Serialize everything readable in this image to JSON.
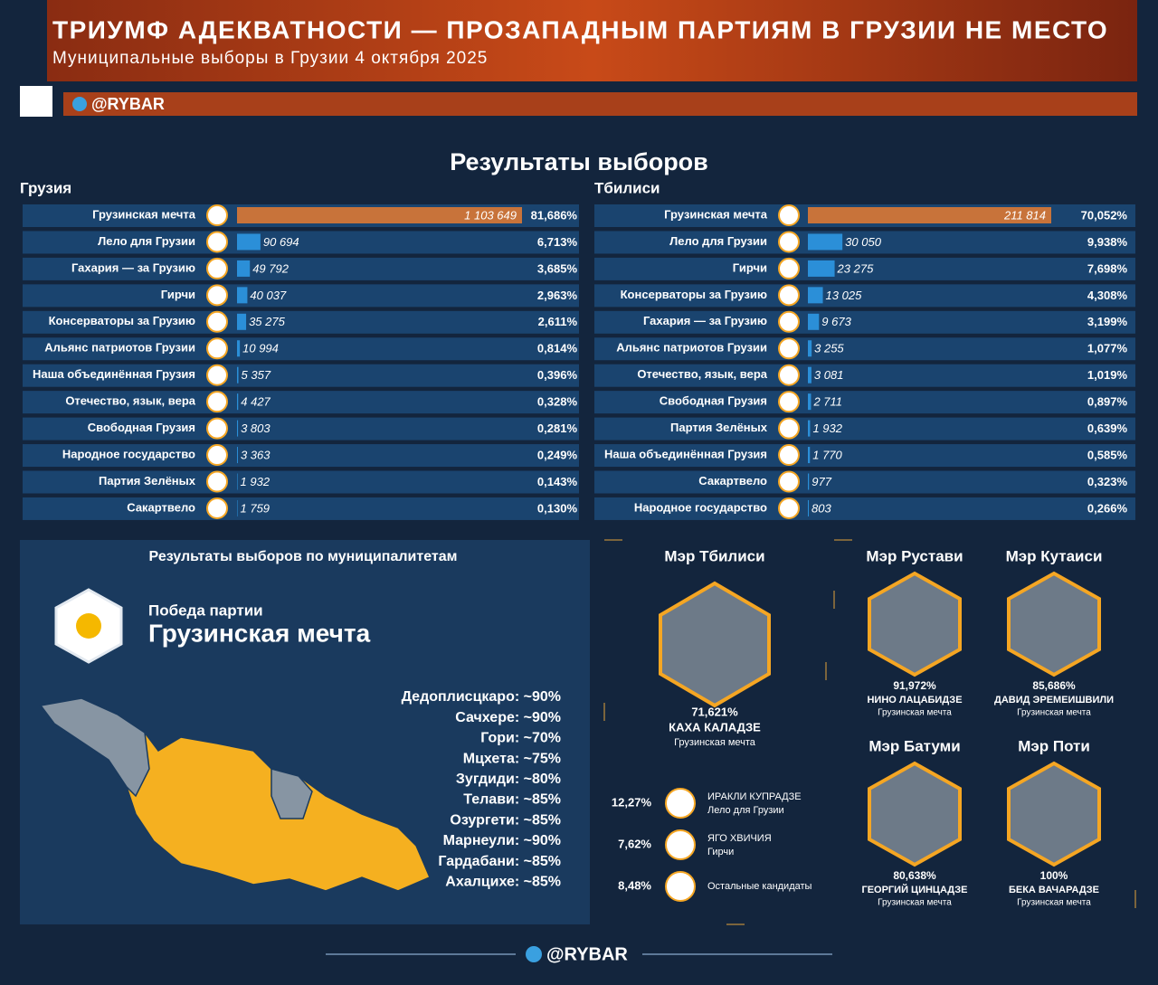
{
  "header": {
    "title": "ТРИУМФ АДЕКВАТНОСТИ — ПРОЗАПАДНЫМ ПАРТИЯМ В ГРУЗИИ НЕ МЕСТО",
    "subtitle": "Муниципальные выборы в Грузии 4 октября 2025",
    "handle": "@RYBAR"
  },
  "section_title": "Результаты выборов",
  "chart_data": [
    {
      "type": "bar",
      "title": "Грузия",
      "color": "#2b8fd8",
      "leader_color": "#c8733a",
      "categories": [
        "Грузинская мечта",
        "Лело для Грузии",
        "Гахария — за Грузию",
        "Гирчи",
        "Консерваторы за Грузию",
        "Альянс патриотов Грузии",
        "Наша объединённая Грузия",
        "Отечество, язык, вера",
        "Свободная Грузия",
        "Народное государство",
        "Партия Зелёных",
        "Сакартвело"
      ],
      "values": [
        1103649,
        90694,
        49792,
        40037,
        35275,
        10994,
        5357,
        4427,
        3803,
        3363,
        1932,
        1759
      ],
      "value_labels": [
        "1 103 649",
        "90 694",
        "49 792",
        "40 037",
        "35 275",
        "10 994",
        "5 357",
        "4 427",
        "3 803",
        "3 363",
        "1 932",
        "1 759"
      ],
      "percent_labels": [
        "81,686%",
        "6,713%",
        "3,685%",
        "2,963%",
        "2,611%",
        "0,814%",
        "0,396%",
        "0,328%",
        "0,281%",
        "0,249%",
        "0,143%",
        "0,130%"
      ]
    },
    {
      "type": "bar",
      "title": "Тбилиси",
      "color": "#2b8fd8",
      "leader_color": "#c8733a",
      "categories": [
        "Грузинская мечта",
        "Лело для Грузии",
        "Гирчи",
        "Консерваторы за Грузию",
        "Гахария — за Грузию",
        "Альянс патриотов Грузии",
        "Отечество, язык, вера",
        "Свободная Грузия",
        "Партия Зелёных",
        "Наша объединённая Грузия",
        "Сакартвело",
        "Народное государство"
      ],
      "values": [
        211814,
        30050,
        23275,
        13025,
        9673,
        3255,
        3081,
        2711,
        1932,
        1770,
        977,
        803
      ],
      "value_labels": [
        "211 814",
        "30 050",
        "23 275",
        "13 025",
        "9 673",
        "3 255",
        "3 081",
        "2 711",
        "1 932",
        "1 770",
        "977",
        "803"
      ],
      "percent_labels": [
        "70,052%",
        "9,938%",
        "7,698%",
        "4,308%",
        "3,199%",
        "1,077%",
        "1,019%",
        "0,897%",
        "0,639%",
        "0,585%",
        "0,323%",
        "0,266%"
      ]
    }
  ],
  "municipal": {
    "title": "Результаты выборов по муниципалитетам",
    "win_label": "Победа партии",
    "party": "Грузинская мечта",
    "items": [
      "Дедоплисцкаро: ~90%",
      "Сачхере: ~90%",
      "Гори: ~70%",
      "Мцхета: ~75%",
      "Зугдиди: ~80%",
      "Телави: ~85%",
      "Озургети: ~85%",
      "Марнеули: ~90%",
      "Гардабани: ~85%",
      "Ахалцихе: ~85%"
    ]
  },
  "mayors": [
    {
      "title": "Мэр Тбилиси",
      "percent": "71,621%",
      "name": "КАХА КАЛАДЗЕ",
      "party": "Грузинская мечта"
    },
    {
      "title": "Мэр Рустави",
      "percent": "91,972%",
      "name": "НИНО ЛАЦАБИДЗЕ",
      "party": "Грузинская мечта"
    },
    {
      "title": "Мэр Кутаиси",
      "percent": "85,686%",
      "name": "ДАВИД ЭРЕМЕИШВИЛИ",
      "party": "Грузинская мечта"
    },
    {
      "title": "Мэр Батуми",
      "percent": "80,638%",
      "name": "ГЕОРГИЙ ЦИНЦАДЗЕ",
      "party": "Грузинская мечта"
    },
    {
      "title": "Мэр Поти",
      "percent": "100%",
      "name": "БЕКА ВАЧАРАДЗЕ",
      "party": "Грузинская мечта"
    }
  ],
  "tbilisi_others": [
    {
      "percent": "12,27%",
      "name": "ИРАКЛИ КУПРАДЗЕ",
      "party": "Лело для Грузии"
    },
    {
      "percent": "7,62%",
      "name": "ЯГО ХВИЧИЯ",
      "party": "Гирчи"
    },
    {
      "percent": "8,48%",
      "name": "Остальные кандидаты"
    }
  ]
}
